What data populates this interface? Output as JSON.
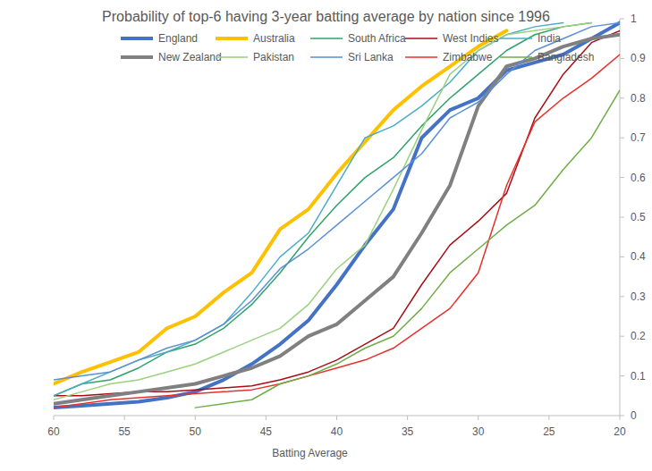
{
  "chart_data": {
    "type": "line",
    "title": "Probability of top-6 having 3-year batting average by nation since 1996",
    "x_label": "Batting Average",
    "x": [
      60,
      58,
      56,
      54,
      52,
      50,
      48,
      46,
      44,
      42,
      40,
      38,
      36,
      34,
      32,
      30,
      28,
      26,
      24,
      22,
      20
    ],
    "series": [
      {
        "name": "England",
        "color": "#4472c4",
        "values": [
          0.02,
          0.025,
          0.03,
          0.035,
          0.045,
          0.06,
          0.09,
          0.13,
          0.18,
          0.24,
          0.33,
          0.43,
          0.52,
          0.7,
          0.77,
          0.8,
          0.87,
          0.89,
          0.91,
          0.95,
          0.99
        ]
      },
      {
        "name": "Australia",
        "color": "#ffc000",
        "values": [
          0.08,
          0.11,
          0.135,
          0.16,
          0.22,
          0.25,
          0.31,
          0.36,
          0.47,
          0.52,
          0.61,
          0.69,
          0.77,
          0.83,
          0.88,
          0.93,
          0.97,
          null,
          null,
          null,
          null
        ]
      },
      {
        "name": "South Africa",
        "color": "#2ea36a",
        "values": [
          0.05,
          0.08,
          0.09,
          0.12,
          0.16,
          0.18,
          0.22,
          0.28,
          0.36,
          0.45,
          0.53,
          0.6,
          0.65,
          0.73,
          0.8,
          0.86,
          0.92,
          0.96,
          0.98,
          0.99,
          null
        ]
      },
      {
        "name": "West Indies",
        "color": "#a50f15",
        "values": [
          0.05,
          0.05,
          0.055,
          0.06,
          0.06,
          0.065,
          0.07,
          0.075,
          0.09,
          0.11,
          0.14,
          0.18,
          0.22,
          0.33,
          0.43,
          0.49,
          0.56,
          0.75,
          0.86,
          0.94,
          0.97
        ]
      },
      {
        "name": "India",
        "color": "#4bacc6",
        "values": [
          0.05,
          0.08,
          0.11,
          0.14,
          0.16,
          0.19,
          0.23,
          0.31,
          0.4,
          0.46,
          0.58,
          0.7,
          0.73,
          0.78,
          0.84,
          0.92,
          0.96,
          0.98,
          0.99,
          null,
          null
        ]
      },
      {
        "name": "New Zealand",
        "color": "#808080",
        "values": [
          0.03,
          0.04,
          0.05,
          0.06,
          0.07,
          0.08,
          0.1,
          0.12,
          0.15,
          0.2,
          0.23,
          0.29,
          0.35,
          0.46,
          0.58,
          0.78,
          0.88,
          0.9,
          0.93,
          0.95,
          0.96
        ]
      },
      {
        "name": "Pakistan",
        "color": "#9bd17f",
        "values": [
          0.04,
          0.06,
          0.08,
          0.09,
          0.11,
          0.13,
          0.16,
          0.19,
          0.22,
          0.28,
          0.37,
          0.43,
          0.57,
          0.72,
          0.86,
          0.92,
          0.96,
          0.97,
          0.98,
          0.99,
          null
        ]
      },
      {
        "name": "Sri Lanka",
        "color": "#5b8fd6",
        "values": [
          0.09,
          0.1,
          0.11,
          0.14,
          0.17,
          0.19,
          0.23,
          0.29,
          0.37,
          0.42,
          0.48,
          0.54,
          0.6,
          0.66,
          0.75,
          0.79,
          0.86,
          0.92,
          0.95,
          0.98,
          0.99
        ]
      },
      {
        "name": "Zimbabwe",
        "color": "#e8302a",
        "values": [
          0.02,
          0.03,
          0.04,
          0.045,
          0.05,
          0.055,
          0.06,
          0.065,
          0.08,
          0.1,
          0.12,
          0.14,
          0.17,
          0.22,
          0.27,
          0.36,
          0.58,
          0.74,
          0.8,
          0.85,
          0.91
        ]
      },
      {
        "name": "Bangladesh",
        "color": "#70ad47",
        "values": [
          null,
          null,
          null,
          null,
          null,
          0.02,
          0.03,
          0.04,
          0.08,
          0.1,
          0.13,
          0.17,
          0.2,
          0.27,
          0.36,
          0.42,
          0.48,
          0.53,
          0.62,
          0.7,
          0.82
        ]
      }
    ],
    "xlim": [
      60,
      20
    ],
    "xticks": [
      60,
      55,
      50,
      45,
      40,
      35,
      30,
      25,
      20
    ],
    "ylim": [
      0,
      1
    ],
    "yticks": [
      0,
      0.1,
      0.2,
      0.3,
      0.4,
      0.5,
      0.6,
      0.7,
      0.8,
      0.9,
      1
    ],
    "grid": false,
    "legend": "top"
  }
}
